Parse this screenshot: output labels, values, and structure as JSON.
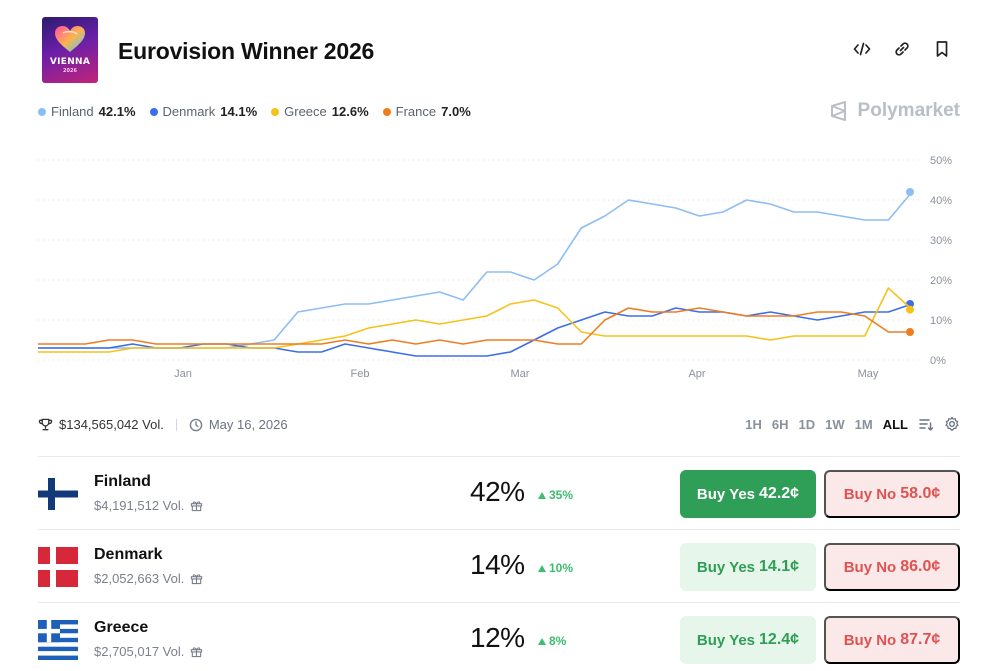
{
  "header": {
    "title": "Eurovision Winner 2026",
    "logo_text": "VIENNA",
    "logo_sub": "2026"
  },
  "legend": [
    {
      "name": "Finland",
      "pct": "42.1%",
      "color": "#8dbdf5"
    },
    {
      "name": "Denmark",
      "pct": "14.1%",
      "color": "#3c6ee8"
    },
    {
      "name": "Greece",
      "pct": "12.6%",
      "color": "#f6c21a"
    },
    {
      "name": "France",
      "pct": "7.0%",
      "color": "#f07c20"
    }
  ],
  "brand": "Polymarket",
  "chart_data": {
    "type": "line",
    "x_labels": [
      "Jan",
      "Feb",
      "Mar",
      "Apr",
      "May"
    ],
    "y_ticks": [
      "50%",
      "40%",
      "30%",
      "20%",
      "10%",
      "0%"
    ],
    "ylim": [
      0,
      50
    ],
    "grid": true,
    "series": [
      {
        "name": "Finland",
        "color": "#8dbdf5",
        "values": [
          3,
          3,
          3,
          3,
          3,
          3,
          3,
          3,
          3,
          4,
          5,
          12,
          13,
          14,
          14,
          15,
          16,
          17,
          15,
          22,
          22,
          20,
          24,
          33,
          36,
          40,
          39,
          38,
          36,
          37,
          40,
          39,
          37,
          37,
          36,
          35,
          35,
          42
        ]
      },
      {
        "name": "Denmark",
        "color": "#3c6ee8",
        "values": [
          3,
          3,
          3,
          3,
          4,
          3,
          3,
          4,
          4,
          3,
          3,
          2,
          2,
          4,
          3,
          2,
          1,
          1,
          1,
          1,
          2,
          5,
          8,
          10,
          12,
          11,
          11,
          13,
          12,
          12,
          11,
          12,
          11,
          10,
          11,
          12,
          12,
          14
        ]
      },
      {
        "name": "Greece",
        "color": "#f6c21a",
        "values": [
          2,
          2,
          2,
          2,
          3,
          3,
          3,
          3,
          3,
          3,
          3,
          4,
          5,
          6,
          8,
          9,
          10,
          9,
          10,
          11,
          14,
          15,
          13,
          7,
          6,
          6,
          6,
          6,
          6,
          6,
          6,
          5,
          6,
          6,
          6,
          6,
          18,
          12.6
        ]
      },
      {
        "name": "France",
        "color": "#f07c20",
        "values": [
          4,
          4,
          4,
          5,
          5,
          4,
          4,
          4,
          4,
          4,
          4,
          4,
          4,
          5,
          4,
          5,
          4,
          5,
          4,
          5,
          5,
          5,
          4,
          4,
          10,
          13,
          12,
          12,
          13,
          12,
          11,
          11,
          11,
          12,
          12,
          11,
          7,
          7
        ]
      }
    ]
  },
  "stats": {
    "volume": "$134,565,042 Vol.",
    "date": "May 16, 2026"
  },
  "ranges": [
    "1H",
    "6H",
    "1D",
    "1W",
    "1M",
    "ALL"
  ],
  "active_range": "ALL",
  "outcomes": [
    {
      "name": "Finland",
      "volume": "$4,191,512 Vol.",
      "prob": "42%",
      "change": "35%",
      "yes_label": "Buy Yes",
      "yes_price": "42.2¢",
      "no_label": "Buy No",
      "no_price": "58.0¢"
    },
    {
      "name": "Denmark",
      "volume": "$2,052,663 Vol.",
      "prob": "14%",
      "change": "10%",
      "yes_label": "Buy Yes",
      "yes_price": "14.1¢",
      "no_label": "Buy No",
      "no_price": "86.0¢"
    },
    {
      "name": "Greece",
      "volume": "$2,705,017 Vol.",
      "prob": "12%",
      "change": "8%",
      "yes_label": "Buy Yes",
      "yes_price": "12.4¢",
      "no_label": "Buy No",
      "no_price": "87.7¢"
    }
  ]
}
